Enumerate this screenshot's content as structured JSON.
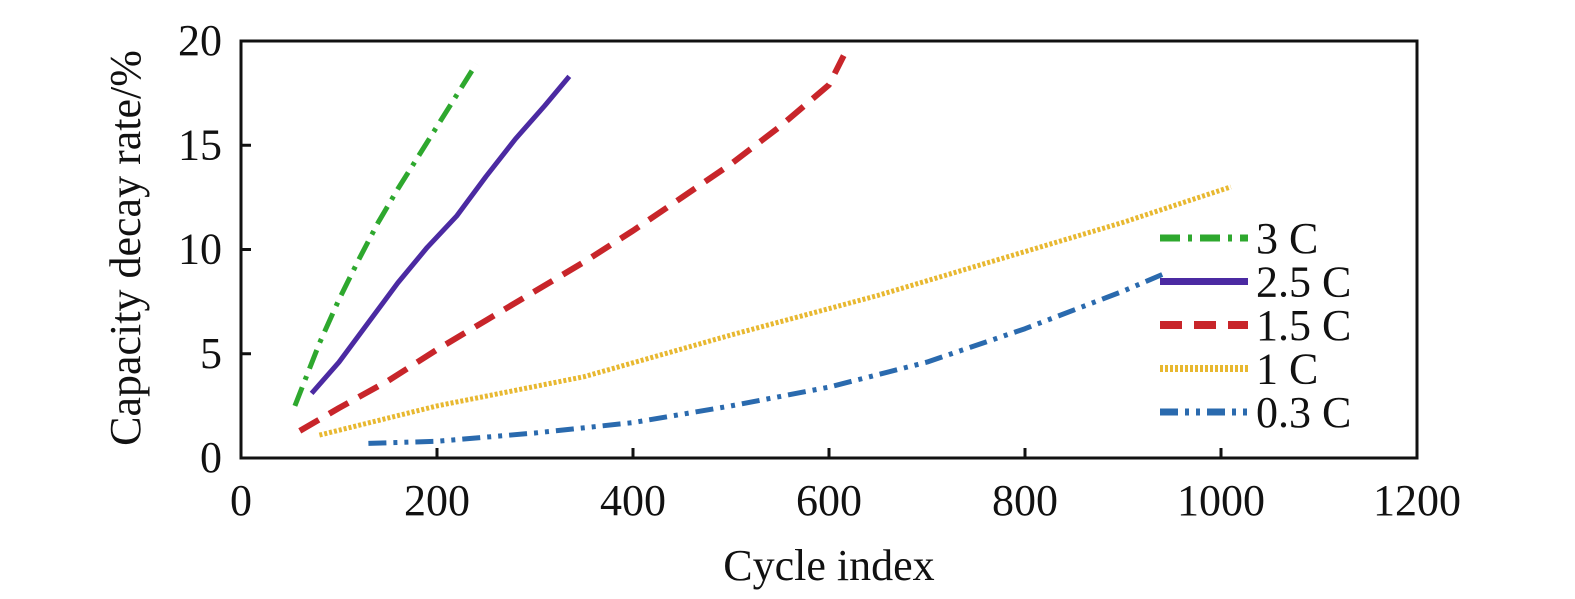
{
  "chart_data": {
    "type": "line",
    "title": "",
    "xlabel": "Cycle index",
    "ylabel": "Capacity decay rate/%",
    "xlim": [
      0,
      1200
    ],
    "ylim": [
      0,
      20
    ],
    "xticks": [
      0,
      200,
      400,
      600,
      800,
      1000,
      1200
    ],
    "yticks": [
      0,
      5,
      10,
      15,
      20
    ],
    "grid": false,
    "legend_position": "right",
    "series": [
      {
        "name": "3 C",
        "color": "#2ea82e",
        "dash": "dash-dot",
        "x": [
          55,
          80,
          100,
          120,
          140,
          160,
          180,
          200,
          220,
          240
        ],
        "y": [
          2.5,
          5.5,
          7.6,
          9.5,
          11.3,
          12.9,
          14.4,
          15.9,
          17.4,
          18.9
        ]
      },
      {
        "name": "2.5 C",
        "color": "#4b2aa2",
        "dash": "solid",
        "x": [
          72,
          100,
          130,
          160,
          190,
          220,
          250,
          280,
          310,
          335
        ],
        "y": [
          3.1,
          4.6,
          6.5,
          8.4,
          10.1,
          11.6,
          13.5,
          15.3,
          16.9,
          18.3
        ]
      },
      {
        "name": "1.5 C",
        "color": "#c8252a",
        "dash": "dash",
        "x": [
          60,
          100,
          150,
          200,
          250,
          300,
          350,
          400,
          450,
          500,
          550,
          600,
          615
        ],
        "y": [
          1.3,
          2.4,
          3.7,
          5.2,
          6.6,
          8.0,
          9.4,
          10.9,
          12.5,
          14.1,
          15.9,
          17.9,
          19.3
        ]
      },
      {
        "name": "1 C",
        "color": "#e8b830",
        "dash": "dot",
        "x": [
          80,
          200,
          350,
          500,
          650,
          800,
          900,
          1010
        ],
        "y": [
          1.1,
          2.5,
          3.9,
          5.9,
          7.8,
          9.9,
          11.3,
          13.0
        ]
      },
      {
        "name": "0.3 C",
        "color": "#2a6aae",
        "dash": "dash-dot-dot",
        "x": [
          130,
          200,
          300,
          400,
          500,
          600,
          700,
          800,
          900,
          940
        ],
        "y": [
          0.7,
          0.8,
          1.2,
          1.7,
          2.5,
          3.4,
          4.6,
          6.2,
          8.0,
          8.8
        ]
      }
    ]
  }
}
